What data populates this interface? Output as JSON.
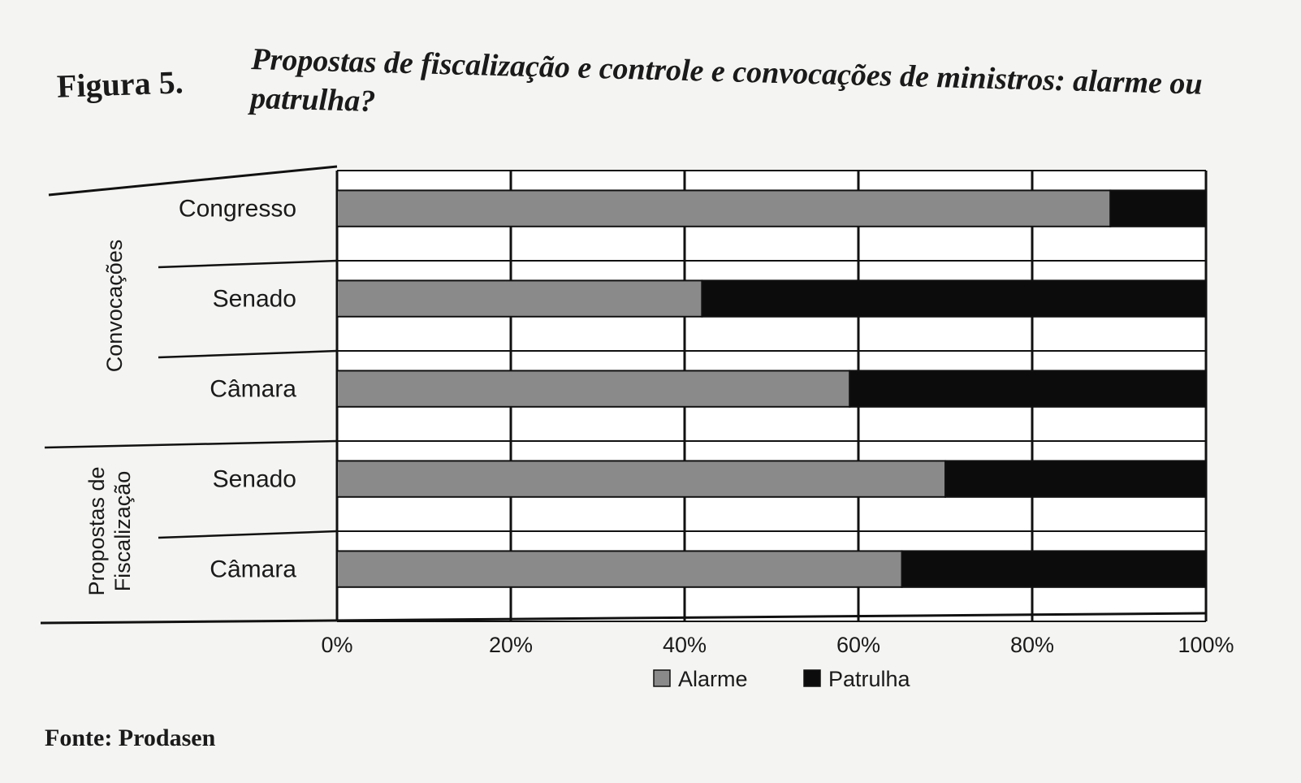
{
  "figure": {
    "label": "Figura 5.",
    "title": "Propostas de fiscalização e controle e convocações de ministros: alarme ou patrulha?",
    "source": "Fonte: Prodasen"
  },
  "chart_data": {
    "type": "bar",
    "orientation": "horizontal",
    "stacked": "percent",
    "groups": [
      {
        "label": "Convocações",
        "categories": [
          "Congresso",
          "Senado",
          "Câmara"
        ]
      },
      {
        "label": "Propostas de Fiscalização",
        "categories": [
          "Senado",
          "Câmara"
        ]
      }
    ],
    "categories": [
      "Congresso",
      "Senado",
      "Câmara",
      "Senado",
      "Câmara"
    ],
    "series": [
      {
        "name": "Alarme",
        "color": "#8a8a8a",
        "values": [
          89,
          42,
          59,
          70,
          65
        ]
      },
      {
        "name": "Patrulha",
        "color": "#0c0c0c",
        "values": [
          11,
          58,
          41,
          30,
          35
        ]
      }
    ],
    "xlim": [
      0,
      100
    ],
    "x_ticks": [
      "0%",
      "20%",
      "40%",
      "60%",
      "80%",
      "100%"
    ],
    "grid": true,
    "legend_position": "bottom"
  }
}
